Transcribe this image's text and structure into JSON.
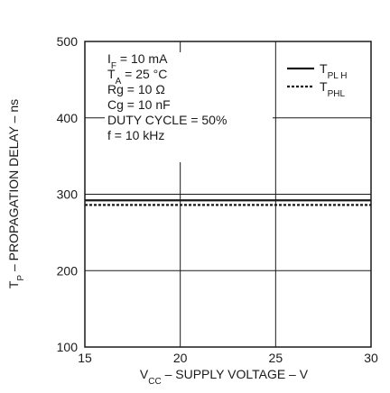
{
  "chart_data": {
    "type": "line",
    "xlabel": "V_CC – SUPPLY VOLTAGE – V",
    "ylabel": "T_P – PROPAGATION DELAY – ns",
    "xlim": [
      15,
      30
    ],
    "ylim": [
      100,
      500
    ],
    "xticks": [
      "15",
      "20",
      "25",
      "30"
    ],
    "yticks": [
      "100",
      "200",
      "300",
      "400",
      "500"
    ],
    "grid": true,
    "legend_position": "top-right",
    "conditions": [
      "I_F = 10 mA",
      "T_A = 25 °C",
      "Rg = 10 Ω",
      "Cg = 10 nF",
      "DUTY CYCLE = 50%",
      "f = 10 kHz"
    ],
    "series": [
      {
        "name": "T_PLH",
        "style": "solid",
        "color": "#1a1a1a",
        "x": [
          15,
          20,
          25,
          30
        ],
        "y": [
          292,
          292,
          292,
          292
        ]
      },
      {
        "name": "T_PHL",
        "style": "dotted",
        "color": "#1a1a1a",
        "x": [
          15,
          20,
          25,
          30
        ],
        "y": [
          286,
          286,
          286,
          286
        ]
      }
    ]
  }
}
